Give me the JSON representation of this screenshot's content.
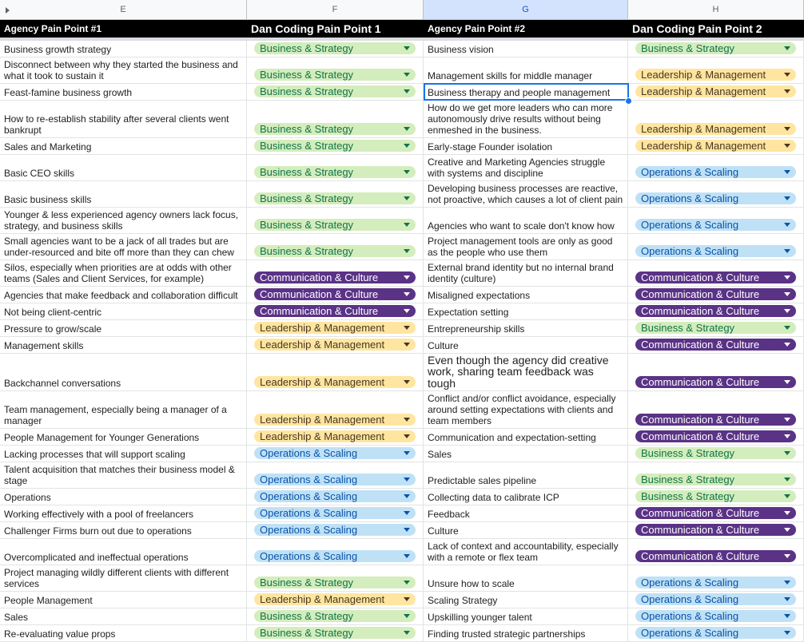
{
  "columns": [
    "E",
    "F",
    "G",
    "H"
  ],
  "headers": [
    "Agency Pain Point #1",
    "Dan Coding Pain Point 1",
    "Agency Pain Point #2",
    "Dan Coding Pain Point 2"
  ],
  "chip_colors": {
    "Business & Strategy": "#d4edbc",
    "Leadership & Management": "#ffe5a0",
    "Operations & Scaling": "#bfe1f6",
    "Communication & Culture": "#5a3286"
  },
  "rows": [
    {
      "e": "Business growth strategy",
      "f": "Business & Strategy",
      "g": "Business vision",
      "h": "Business & Strategy"
    },
    {
      "e": "Disconnect between why they started the business and what it took to sustain it",
      "f": "Business & Strategy",
      "g": "Management skills for middle manager",
      "h": "Leadership & Management"
    },
    {
      "e": "Feast-famine business growth",
      "f": "Business & Strategy",
      "g": "Business therapy and people management",
      "h": "Leadership & Management"
    },
    {
      "e": "How to re-establish stability after several clients went bankrupt",
      "f": "Business & Strategy",
      "g": "How do we get more leaders who can more autonomously drive results without being enmeshed in the business.",
      "h": "Leadership & Management"
    },
    {
      "e": "Sales and Marketing",
      "f": "Business & Strategy",
      "g": "Early-stage Founder isolation",
      "h": "Leadership & Management"
    },
    {
      "e": "Basic CEO skills",
      "f": "Business & Strategy",
      "g": "Creative and Marketing Agencies struggle with systems and discipline",
      "h": "Operations & Scaling"
    },
    {
      "e": "Basic business skills",
      "f": "Business & Strategy",
      "g": "Developing business processes are reactive, not proactive, which causes a lot of client pain",
      "h": "Operations & Scaling"
    },
    {
      "e": "Younger & less experienced agency owners lack focus, strategy, and business skills",
      "f": "Business & Strategy",
      "g": "Agencies who want to scale don't know how",
      "h": "Operations & Scaling"
    },
    {
      "e": "Small agencies want to be a jack of all trades but are under-resourced and bite off more than they can chew",
      "f": "Business & Strategy",
      "g": "Project management tools are only as good as the people who use them",
      "h": "Operations & Scaling"
    },
    {
      "e": "Silos, especially when priorities are at odds with other teams (Sales and Client Services, for example)",
      "f": "Communication & Culture",
      "g": "External brand identity but no internal brand identity (culture)",
      "h": "Communication & Culture"
    },
    {
      "e": "Agencies that make feedback and collaboration difficult",
      "f": "Communication & Culture",
      "g": "Misaligned expectations",
      "h": "Communication & Culture"
    },
    {
      "e": "Not being client-centric",
      "f": "Communication & Culture",
      "g": "Expectation setting",
      "h": "Communication & Culture"
    },
    {
      "e": "Pressure to grow/scale",
      "f": "Leadership & Management",
      "g": "Entrepreneurship skills",
      "h": "Business & Strategy"
    },
    {
      "e": "Management skills",
      "f": "Leadership & Management",
      "g": "Culture",
      "h": "Communication & Culture"
    },
    {
      "e": "Backchannel conversations",
      "f": "Leadership & Management",
      "g": "Even though the agency did creative work, sharing team feedback was tough",
      "h": "Communication & Culture"
    },
    {
      "e": "Team management, especially being a manager of a manager",
      "f": "Leadership & Management",
      "g": "Conflict and/or conflict avoidance, especially around setting expectations with clients and team members",
      "h": "Communication & Culture"
    },
    {
      "e": "People Management for Younger Generations",
      "f": "Leadership & Management",
      "g": "Communication and expectation-setting",
      "h": "Communication & Culture"
    },
    {
      "e": "Lacking processes that will support scaling",
      "f": "Operations & Scaling",
      "g": "Sales",
      "h": "Business & Strategy"
    },
    {
      "e": "Talent acquisition that matches their business model & stage",
      "f": "Operations & Scaling",
      "g": "Predictable sales pipeline",
      "h": "Business & Strategy"
    },
    {
      "e": "Operations",
      "f": "Operations & Scaling",
      "g": "Collecting data to calibrate ICP",
      "h": "Business & Strategy"
    },
    {
      "e": "Working effectively with a pool of freelancers",
      "f": "Operations & Scaling",
      "g": "Feedback",
      "h": "Communication & Culture"
    },
    {
      "e": "Challenger Firms burn out due to operations",
      "f": "Operations & Scaling",
      "g": "Culture",
      "h": "Communication & Culture"
    },
    {
      "e": "Overcomplicated and ineffectual operations",
      "f": "Operations & Scaling",
      "g": "Lack of context and accountability, especially with a remote or flex team",
      "h": "Communication & Culture"
    },
    {
      "e": "Project managing wildly different clients with different services",
      "f": "Business & Strategy",
      "g": "Unsure how to scale",
      "h": "Operations & Scaling"
    },
    {
      "e": "People Management",
      "f": "Leadership & Management",
      "g": "Scaling Strategy",
      "h": "Operations & Scaling"
    },
    {
      "e": "Sales",
      "f": "Business & Strategy",
      "g": "Upskilling younger talent",
      "h": "Operations & Scaling"
    },
    {
      "e": "Re-evaluating value props",
      "f": "Business & Strategy",
      "g": "Finding trusted strategic partnerships",
      "h": "Operations & Scaling"
    }
  ]
}
